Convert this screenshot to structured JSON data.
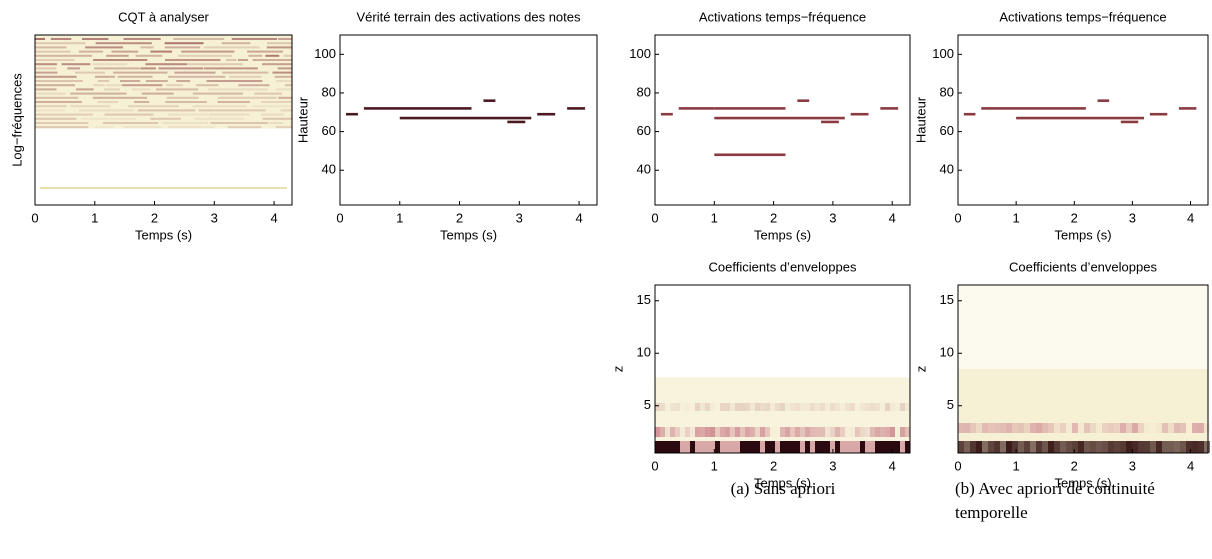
{
  "chart_data": [
    {
      "type": "heatmap",
      "title": "CQT à analyser",
      "xlabel": "Temps (s)",
      "ylabel": "Log−fréquences",
      "xlim": [
        0,
        4.3
      ],
      "xticks": [
        0,
        1,
        2,
        3,
        4
      ],
      "texture": "cqt"
    },
    {
      "type": "pianoroll",
      "title": "Vérité terrain des activations des notes",
      "xlabel": "Temps (s)",
      "ylabel": "Hauteur",
      "xlim": [
        0,
        4.3
      ],
      "xticks": [
        0,
        1,
        2,
        3,
        4
      ],
      "ylim": [
        22,
        110
      ],
      "yticks": [
        40,
        60,
        80,
        100
      ],
      "color": "#4a1a20",
      "notes": [
        {
          "start": 0.1,
          "end": 0.3,
          "pitch": 69
        },
        {
          "start": 0.4,
          "end": 2.2,
          "pitch": 72
        },
        {
          "start": 1.0,
          "end": 3.2,
          "pitch": 67
        },
        {
          "start": 2.4,
          "end": 2.6,
          "pitch": 76
        },
        {
          "start": 2.8,
          "end": 3.1,
          "pitch": 65
        },
        {
          "start": 3.3,
          "end": 3.6,
          "pitch": 69
        },
        {
          "start": 3.8,
          "end": 4.1,
          "pitch": 72
        }
      ]
    },
    {
      "type": "pianoroll",
      "title": "Activations temps−fréquence",
      "xlabel": "Temps (s)",
      "xlim": [
        0,
        4.3
      ],
      "xticks": [
        0,
        1,
        2,
        3,
        4
      ],
      "ylim": [
        22,
        110
      ],
      "yticks": [
        40,
        60,
        80,
        100
      ],
      "color": "#8a3a40",
      "notes": [
        {
          "start": 0.1,
          "end": 0.3,
          "pitch": 69
        },
        {
          "start": 0.4,
          "end": 1.0,
          "pitch": 72
        },
        {
          "start": 1.0,
          "end": 2.2,
          "pitch": 72
        },
        {
          "start": 1.0,
          "end": 3.2,
          "pitch": 67
        },
        {
          "start": 2.4,
          "end": 2.6,
          "pitch": 76
        },
        {
          "start": 2.8,
          "end": 3.1,
          "pitch": 65
        },
        {
          "start": 3.3,
          "end": 3.6,
          "pitch": 69
        },
        {
          "start": 3.8,
          "end": 4.1,
          "pitch": 72
        },
        {
          "start": 1.0,
          "end": 2.2,
          "pitch": 48
        }
      ]
    },
    {
      "type": "pianoroll",
      "title": "Activations temps−fréquence",
      "xlabel": "Temps (s)",
      "ylabel": "Hauteur",
      "xlim": [
        0,
        4.3
      ],
      "xticks": [
        0,
        1,
        2,
        3,
        4
      ],
      "ylim": [
        22,
        110
      ],
      "yticks": [
        40,
        60,
        80,
        100
      ],
      "color": "#8a3a40",
      "notes": [
        {
          "start": 0.1,
          "end": 0.3,
          "pitch": 69
        },
        {
          "start": 0.4,
          "end": 2.2,
          "pitch": 72
        },
        {
          "start": 1.0,
          "end": 3.2,
          "pitch": 67
        },
        {
          "start": 2.4,
          "end": 2.6,
          "pitch": 76
        },
        {
          "start": 2.8,
          "end": 3.1,
          "pitch": 65
        },
        {
          "start": 3.3,
          "end": 3.6,
          "pitch": 69
        },
        {
          "start": 3.8,
          "end": 4.1,
          "pitch": 72
        }
      ]
    },
    {
      "type": "heatmap",
      "title": "Coefficients d’enveloppes",
      "xlabel": "Temps (s)",
      "ylabel": "z",
      "xlim": [
        0,
        4.3
      ],
      "xticks": [
        0,
        1,
        2,
        3,
        4
      ],
      "ylim": [
        0.5,
        16.5
      ],
      "yticks": [
        5,
        10,
        15
      ],
      "texture": "sparse"
    },
    {
      "type": "heatmap",
      "title": "Coefficients d’enveloppes",
      "xlabel": "Temps (s)",
      "ylabel": "z",
      "xlim": [
        0,
        4.3
      ],
      "xticks": [
        0,
        1,
        2,
        3,
        4
      ],
      "ylim": [
        0.5,
        16.5
      ],
      "yticks": [
        5,
        10,
        15
      ],
      "texture": "smooth"
    }
  ],
  "captions": [
    "(a) Sans apriori",
    "(b) Avec apriori de continuité temporelle"
  ]
}
